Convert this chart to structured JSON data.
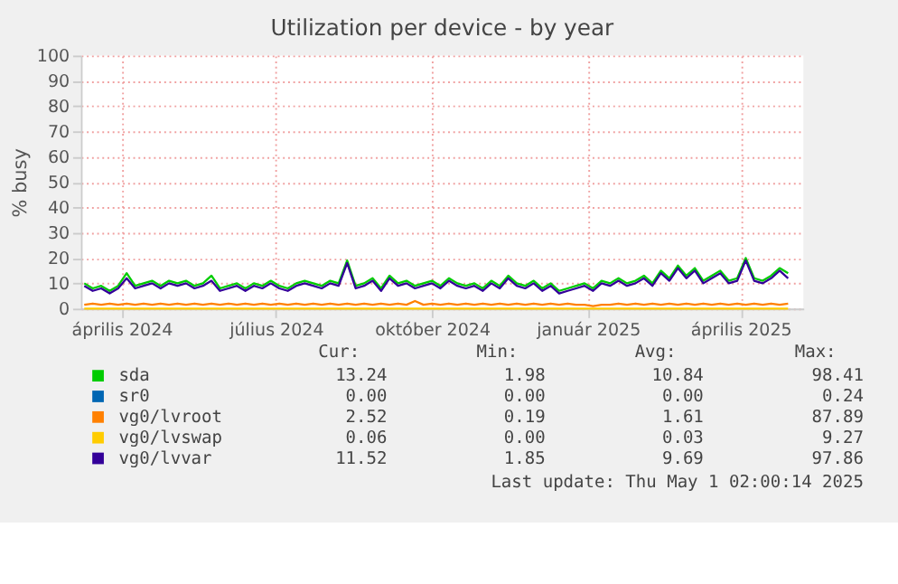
{
  "chart_data": {
    "type": "line",
    "title": "Utilization per device - by year",
    "ylabel": "% busy",
    "x": [
      "2024-03-10",
      "2024-03-15",
      "2024-03-20",
      "2024-03-25",
      "2024-03-30",
      "2024-04-04",
      "2024-04-09",
      "2024-04-14",
      "2024-04-19",
      "2024-04-24",
      "2024-04-29",
      "2024-05-04",
      "2024-05-09",
      "2024-05-14",
      "2024-05-19",
      "2024-05-24",
      "2024-05-29",
      "2024-06-03",
      "2024-06-08",
      "2024-06-13",
      "2024-06-18",
      "2024-06-23",
      "2024-06-28",
      "2024-07-03",
      "2024-07-08",
      "2024-07-13",
      "2024-07-18",
      "2024-07-23",
      "2024-07-28",
      "2024-08-02",
      "2024-08-07",
      "2024-08-12",
      "2024-08-17",
      "2024-08-22",
      "2024-08-27",
      "2024-09-01",
      "2024-09-06",
      "2024-09-11",
      "2024-09-16",
      "2024-09-21",
      "2024-09-26",
      "2024-10-01",
      "2024-10-06",
      "2024-10-11",
      "2024-10-16",
      "2024-10-21",
      "2024-10-26",
      "2024-10-31",
      "2024-11-05",
      "2024-11-10",
      "2024-11-15",
      "2024-11-20",
      "2024-11-25",
      "2024-11-30",
      "2024-12-05",
      "2024-12-10",
      "2024-12-15",
      "2024-12-20",
      "2024-12-25",
      "2024-12-30",
      "2025-01-04",
      "2025-01-09",
      "2025-01-14",
      "2025-01-19",
      "2025-01-24",
      "2025-01-29",
      "2025-02-03",
      "2025-02-08",
      "2025-02-13",
      "2025-02-18",
      "2025-02-23",
      "2025-02-28",
      "2025-03-05",
      "2025-03-10",
      "2025-03-15",
      "2025-03-20",
      "2025-03-25",
      "2025-03-30",
      "2025-04-04",
      "2025-04-09",
      "2025-04-14",
      "2025-04-19",
      "2025-04-24",
      "2025-04-29"
    ],
    "series": [
      {
        "name": "sda",
        "color": "#00cc00",
        "values": [
          10,
          8,
          9,
          7,
          9,
          14,
          9,
          10,
          11,
          9,
          11,
          10,
          11,
          9,
          10,
          13,
          8,
          9,
          10,
          8,
          10,
          9,
          11,
          9,
          8,
          10,
          11,
          10,
          9,
          11,
          10,
          19,
          9,
          10,
          12,
          8,
          13,
          10,
          11,
          9,
          10,
          11,
          9,
          12,
          10,
          9,
          10,
          8,
          11,
          9,
          13,
          10,
          9,
          11,
          8,
          10,
          7,
          8,
          9,
          10,
          8,
          11,
          10,
          12,
          10,
          11,
          13,
          10,
          15,
          12,
          17,
          13,
          16,
          11,
          13,
          15,
          11,
          12,
          20,
          12,
          11,
          13,
          16,
          14
        ]
      },
      {
        "name": "sr0",
        "color": "#0066b3",
        "values": [
          null,
          null,
          null,
          null,
          null,
          null,
          null,
          null,
          null,
          null,
          null,
          null,
          null,
          null,
          null,
          null,
          null,
          null,
          null,
          null,
          null,
          null,
          null,
          null,
          null,
          null,
          null,
          null,
          null,
          null,
          null,
          null,
          null,
          null,
          null,
          null,
          null,
          null,
          null,
          null,
          null,
          null,
          null,
          null,
          null,
          null,
          null,
          null,
          null,
          null,
          null,
          null,
          null,
          null,
          null,
          null,
          null,
          null,
          null,
          null,
          null,
          null,
          null,
          null,
          null,
          null,
          null,
          null,
          null,
          null,
          null,
          null,
          null,
          null,
          null,
          null,
          null,
          null,
          null,
          null,
          null,
          null,
          null,
          null
        ]
      },
      {
        "name": "vg0/lvroot",
        "color": "#ff8000",
        "values": [
          1.5,
          2,
          1.5,
          2,
          1.5,
          2,
          1.5,
          2,
          1.5,
          2,
          1.5,
          2,
          1.5,
          2,
          1.5,
          2,
          1.5,
          2,
          1.5,
          2,
          1.5,
          2,
          1.5,
          2,
          1.5,
          2,
          1.5,
          2,
          1.5,
          2,
          1.5,
          2,
          1.5,
          2,
          1.5,
          2,
          1.5,
          2,
          1.5,
          3,
          1.5,
          2,
          1.5,
          2,
          1.5,
          2,
          1.5,
          2,
          1.5,
          2,
          1.5,
          2,
          1.5,
          2,
          1.5,
          2,
          1.5,
          2,
          1.5,
          1.5,
          1,
          1.5,
          1.5,
          2,
          1.5,
          2,
          1.5,
          2,
          1.5,
          2,
          1.5,
          2,
          1.5,
          2,
          1.5,
          2,
          1.5,
          2,
          1.5,
          2,
          1.5,
          2,
          1.5,
          2
        ]
      },
      {
        "name": "vg0/lvswap",
        "color": "#ffcc00",
        "values": [
          0,
          0,
          0,
          0,
          0,
          0,
          0,
          0,
          0,
          0,
          0,
          0,
          0,
          0,
          0,
          0,
          0,
          0,
          0,
          0,
          0,
          0,
          0,
          0,
          0,
          0,
          0,
          0,
          0,
          0,
          0,
          0,
          0,
          0,
          0,
          0,
          0,
          0,
          0,
          0,
          0,
          0,
          0,
          0,
          0,
          0,
          0,
          0,
          0,
          0,
          0,
          0,
          0,
          0,
          0,
          0,
          0,
          0,
          0,
          0,
          0,
          0,
          0,
          0,
          0,
          0,
          0,
          0,
          0,
          0,
          0,
          0,
          0,
          0,
          0,
          0,
          0,
          0,
          0,
          0,
          0,
          0,
          0,
          0
        ]
      },
      {
        "name": "vg0/lvvar",
        "color": "#330099",
        "values": [
          9,
          7,
          8,
          6,
          8,
          12,
          8,
          9,
          10,
          8,
          10,
          9,
          10,
          8,
          9,
          11,
          7,
          8,
          9,
          7,
          9,
          8,
          10,
          8,
          7,
          9,
          10,
          9,
          8,
          10,
          9,
          18,
          8,
          9,
          11,
          7,
          12,
          9,
          10,
          8,
          9,
          10,
          8,
          11,
          9,
          8,
          9,
          7,
          10,
          8,
          12,
          9,
          8,
          10,
          7,
          9,
          6,
          7,
          8,
          9,
          7,
          10,
          9,
          11,
          9,
          10,
          12,
          9,
          14,
          11,
          16,
          12,
          15,
          10,
          12,
          14,
          10,
          11,
          19,
          11,
          10,
          12,
          15,
          12
        ]
      }
    ],
    "xlim": [
      "2024-03-08",
      "2025-05-08"
    ],
    "xticks": [
      {
        "value": "2024-04-01",
        "label": "április 2024"
      },
      {
        "value": "2024-07-01",
        "label": "július 2024"
      },
      {
        "value": "2024-10-01",
        "label": "október 2024"
      },
      {
        "value": "2025-01-01",
        "label": "január 2025"
      },
      {
        "value": "2025-04-01",
        "label": "április 2025"
      }
    ],
    "ylim": [
      0,
      100
    ],
    "yticks": [
      0,
      10,
      20,
      30,
      40,
      50,
      60,
      70,
      80,
      90,
      100
    ],
    "grid": true,
    "legend": "bottom",
    "annotations": [
      "Cur:",
      "Min:",
      "Avg:",
      "Max:",
      "13.24",
      "1.98",
      "10.84",
      "98.41",
      "0.00",
      "0.00",
      "0.00",
      "0.24",
      "2.52",
      "0.19",
      "1.61",
      "87.89",
      "0.06",
      "0.00",
      "0.03",
      "9.27",
      "11.52",
      "1.85",
      "9.69",
      "97.86",
      "Last update: Thu May  1 02:00:14 2025"
    ]
  }
}
